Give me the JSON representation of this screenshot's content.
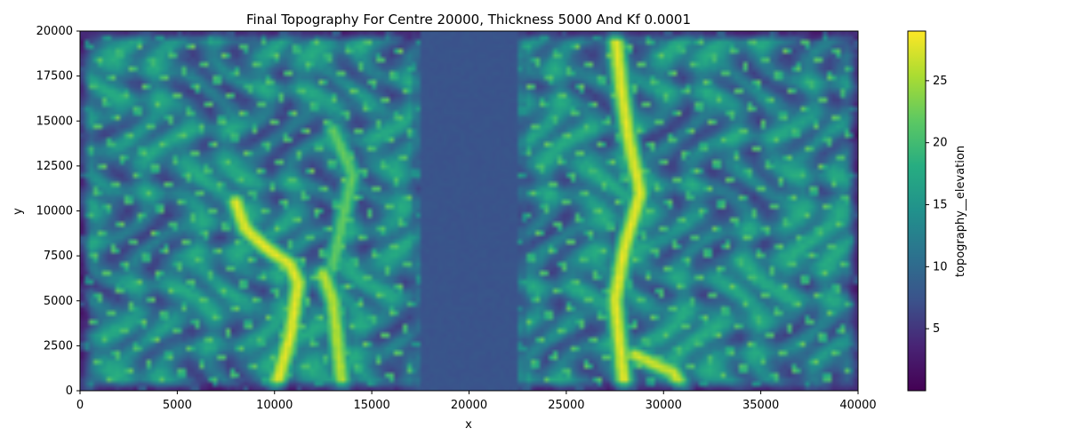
{
  "chart_data": {
    "type": "heatmap",
    "title": "Final Topography For Centre 20000, Thickness 5000 And Kf 0.0001",
    "xlabel": "x",
    "ylabel": "y",
    "xlim": [
      0,
      40000
    ],
    "ylim": [
      0,
      20000
    ],
    "xticks": [
      0,
      5000,
      10000,
      15000,
      20000,
      25000,
      30000,
      35000,
      40000
    ],
    "yticks": [
      0,
      2500,
      5000,
      7500,
      10000,
      12500,
      15000,
      17500,
      20000
    ],
    "colorbar": {
      "label": "topography__elevation",
      "range": [
        0,
        29
      ],
      "ticks": [
        5,
        10,
        15,
        20,
        25
      ],
      "colormap": "viridis"
    },
    "grid": false,
    "features": {
      "flat_band_x": [
        17500,
        22500
      ],
      "flat_band_value": 7.5,
      "left_main_ridge": [
        [
          10000,
          0
        ],
        [
          10800,
          3000
        ],
        [
          11200,
          6000
        ],
        [
          10800,
          7000
        ],
        [
          9500,
          8000
        ],
        [
          8500,
          9000
        ],
        [
          8000,
          10500
        ]
      ],
      "left_secondary_ridge": [
        [
          13500,
          0
        ],
        [
          13200,
          3000
        ],
        [
          13000,
          5000
        ],
        [
          12500,
          6500
        ]
      ],
      "left_upper_ridge": [
        [
          13000,
          7000
        ],
        [
          13500,
          9500
        ],
        [
          14000,
          12000
        ],
        [
          13000,
          14500
        ]
      ],
      "right_main_ridge": [
        [
          27500,
          20000
        ],
        [
          27800,
          17000
        ],
        [
          28200,
          14000
        ],
        [
          28800,
          11000
        ],
        [
          28000,
          8000
        ],
        [
          27500,
          5000
        ],
        [
          27800,
          2000
        ],
        [
          28000,
          0
        ]
      ],
      "right_branch_ridge": [
        [
          28500,
          2000
        ],
        [
          30500,
          1000
        ],
        [
          31000,
          0
        ]
      ]
    }
  }
}
